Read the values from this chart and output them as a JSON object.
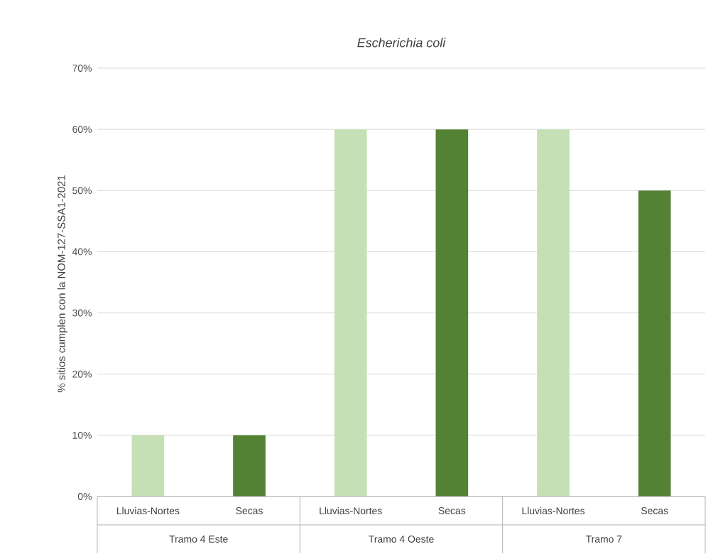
{
  "chart_data": {
    "type": "bar",
    "title": "Escherichia coli",
    "ylabel": "% sitios cumplen con la NOM-127-SSA1-2021",
    "categories": [
      "Tramo 4 Este",
      "Tramo 4 Oeste",
      "Tramo 7"
    ],
    "series": [
      {
        "name": "Lluvias-Nortes",
        "color": "#c5e0b4",
        "values": [
          10,
          60,
          60
        ]
      },
      {
        "name": "Secas",
        "color": "#548235",
        "values": [
          10,
          60,
          50
        ]
      }
    ],
    "ylim": [
      0,
      70
    ],
    "yticks": [
      {
        "value": 0,
        "label": "0%"
      },
      {
        "value": 10,
        "label": "10%"
      },
      {
        "value": 20,
        "label": "20%"
      },
      {
        "value": 30,
        "label": "30%"
      },
      {
        "value": 40,
        "label": "40%"
      },
      {
        "value": 50,
        "label": "50%"
      },
      {
        "value": 60,
        "label": "60%"
      },
      {
        "value": 70,
        "label": "70%"
      }
    ],
    "grid": "y"
  }
}
